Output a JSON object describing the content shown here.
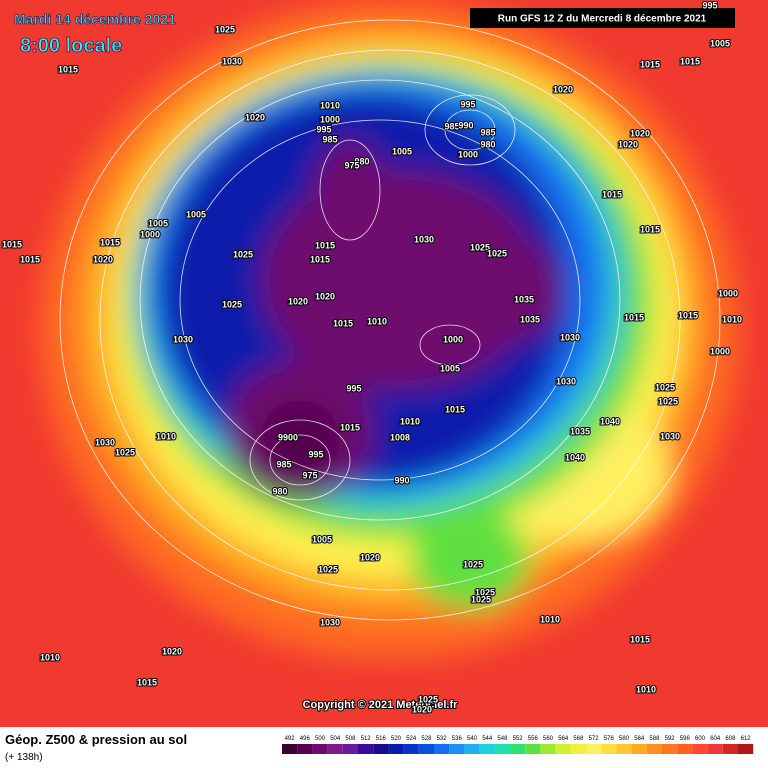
{
  "header": {
    "date": "Mardi 14 décembre 2021",
    "time": "8:00 locale",
    "run": "Run GFS 12 Z du Mercredi 8 décembre 2021"
  },
  "footer": {
    "title": "Géop. Z500 & pression au sol",
    "subtitle": "(+ 138h)",
    "copyright": "Copyright © 2021 Meteociel.fr"
  },
  "legend": {
    "levels": [
      492,
      496,
      500,
      504,
      508,
      512,
      516,
      520,
      524,
      528,
      532,
      536,
      540,
      544,
      548,
      552,
      556,
      560,
      564,
      568,
      572,
      576,
      580,
      584,
      588,
      592,
      596,
      600,
      604,
      608,
      612
    ],
    "colors": [
      "#3a0032",
      "#55004e",
      "#6e0a6e",
      "#7e1a8a",
      "#6a1aa0",
      "#3a0a9a",
      "#1a0a8c",
      "#0a1aaa",
      "#0a32c8",
      "#0a50e0",
      "#1470f0",
      "#1e90f5",
      "#20b0f0",
      "#20d0e0",
      "#20e0b0",
      "#30e070",
      "#60e040",
      "#a0e830",
      "#d0f030",
      "#f0f040",
      "#fff060",
      "#ffe040",
      "#ffc830",
      "#ffaa20",
      "#ff9020",
      "#ff7820",
      "#ff6020",
      "#ff4830",
      "#f03838",
      "#d02828",
      "#b01818"
    ]
  },
  "pressure_labels": [
    995,
    1025,
    1030,
    1015,
    1005,
    1015,
    1015,
    1020,
    1010,
    1000,
    995,
    985,
    995,
    985,
    990,
    985,
    980,
    1000,
    1005,
    980,
    975,
    1020,
    1020,
    1020,
    1015,
    1015,
    1005,
    1005,
    1000,
    1015,
    1015,
    1015,
    1020,
    1025,
    1025,
    1015,
    1015,
    1030,
    1025,
    1025,
    1020,
    1020,
    1015,
    1010,
    1035,
    1035,
    1030,
    1000,
    1005,
    1030,
    1015,
    1015,
    1000,
    1010,
    1000,
    1030,
    995,
    1015,
    1010,
    1008,
    1025,
    1025,
    1040,
    1035,
    1030,
    1010,
    1030,
    1025,
    1015,
    9900,
    995,
    985,
    975,
    980,
    990,
    1040,
    1005,
    1020,
    1025,
    1025,
    1025,
    1025,
    1030,
    1010,
    1020,
    1015,
    1010,
    1015,
    1010,
    1025,
    1020
  ]
}
